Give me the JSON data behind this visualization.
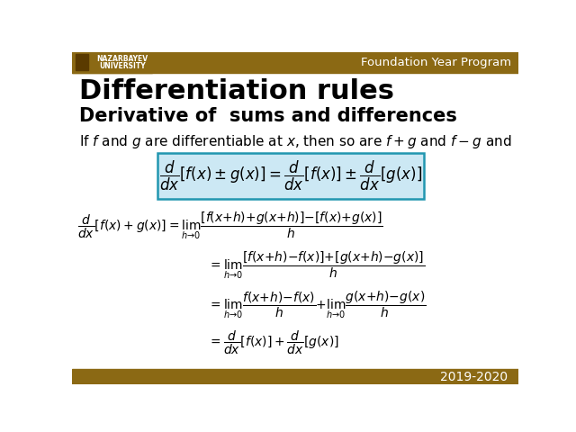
{
  "bg_color": "#ffffff",
  "header_color": "#8B6914",
  "header_text": "Foundation Year Program",
  "header_text_color": "#ffffff",
  "year_text": "2019-2020",
  "year_text_color": "#ffffff",
  "title": "Differentiation rules",
  "subtitle": "Derivative of  sums and differences",
  "box_color": "#cce8f4",
  "box_border_color": "#2196B0",
  "logo_bg": "#8B6914"
}
